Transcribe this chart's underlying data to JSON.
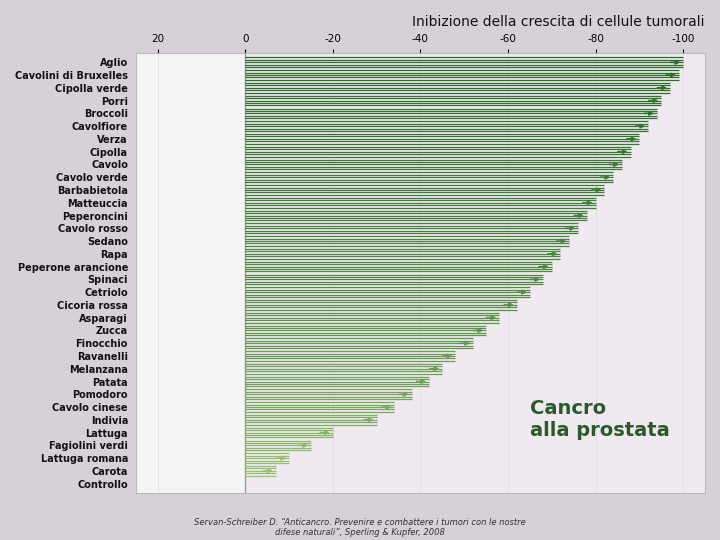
{
  "title": "Inibizione della crescita di cellule tumorali",
  "categories": [
    "Aglio",
    "Cavolini di Bruxelles",
    "Cipolla verde",
    "Porri",
    "Broccoli",
    "Cavolfiore",
    "Verza",
    "Cipolla",
    "Cavolo",
    "Cavolo verde",
    "Barbabietola",
    "Matteuccia",
    "Peperoncini",
    "Cavolo rosso",
    "Sedano",
    "Rapa",
    "Peperone arancione",
    "Spinaci",
    "Cetriolo",
    "Cicoria rossa",
    "Asparagi",
    "Zucca",
    "Finocchio",
    "Ravanelli",
    "Melanzana",
    "Patata",
    "Pomodoro",
    "Cavolo cinese",
    "Indivia",
    "Lattuga",
    "Fagiolini verdi",
    "Lattuga romana",
    "Carota",
    "Controllo"
  ],
  "values": [
    -100,
    -99,
    -97,
    -95,
    -94,
    -92,
    -90,
    -88,
    -86,
    -84,
    -82,
    -80,
    -78,
    -76,
    -74,
    -72,
    -70,
    -68,
    -65,
    -62,
    -58,
    -55,
    -52,
    -48,
    -45,
    -42,
    -38,
    -34,
    -30,
    -20,
    -15,
    -10,
    -7,
    0
  ],
  "bg_right_color": "#f0eaf0",
  "bg_left_color": "#f5f5f5",
  "annotation_text": "Cancro\nalla prostata",
  "annotation_color": "#2a5a2a",
  "annotation_fontsize": 14,
  "source_text": "Servan-Schreiber D. “Anticancro. Prevenire e combattere i tumori con le nostre\ndifese naturali”, Sperling & Kupfer, 2008",
  "xlim_left": 25,
  "xlim_right": -105,
  "xticks": [
    20,
    0,
    -20,
    -40,
    -60,
    -80,
    -100
  ],
  "title_fontsize": 10,
  "label_fontsize": 7,
  "tick_fontsize": 7.5,
  "arrow_color_dark": "#2d6b2d",
  "arrow_color_light": "#a0c878",
  "n_lines": 5
}
